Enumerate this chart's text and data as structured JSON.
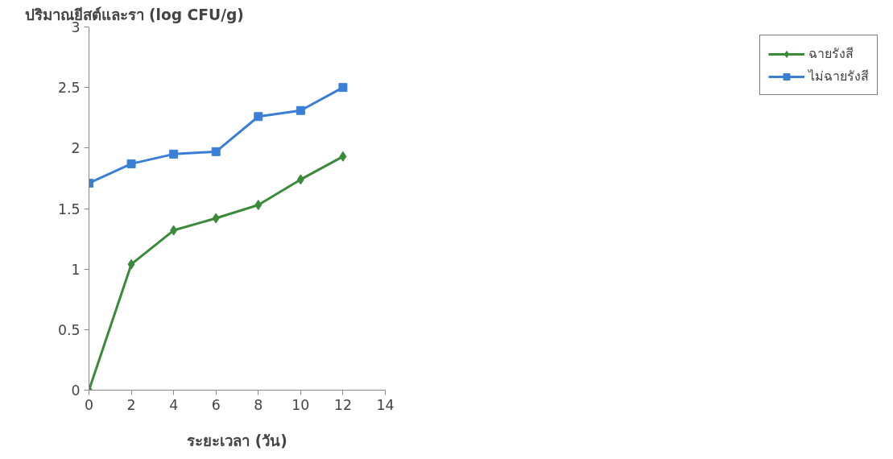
{
  "chart_data": {
    "type": "line",
    "ylabel": "ปริมาณยีสต์และรา (log CFU/g)",
    "xlabel": "ระยะเวลา (วัน)",
    "x": [
      0,
      2,
      4,
      6,
      8,
      10,
      12
    ],
    "series": [
      {
        "name": "ฉายรังสี",
        "color": "#3a8a3a",
        "marker": "diamond",
        "values": [
          0,
          1.04,
          1.32,
          1.42,
          1.53,
          1.74,
          1.93
        ]
      },
      {
        "name": "ไม่ฉายรังสี",
        "color": "#3a7fd5",
        "marker": "square",
        "values": [
          1.71,
          1.87,
          1.95,
          1.97,
          2.26,
          2.31,
          2.5
        ]
      }
    ],
    "xlim": [
      0,
      14
    ],
    "xticks": [
      0,
      2,
      4,
      6,
      8,
      10,
      12,
      14
    ],
    "ylim": [
      0,
      3
    ],
    "yticks": [
      0,
      0.5,
      1,
      1.5,
      2,
      2.5,
      3
    ],
    "grid": false,
    "legend": "right",
    "line_style": "solid"
  }
}
